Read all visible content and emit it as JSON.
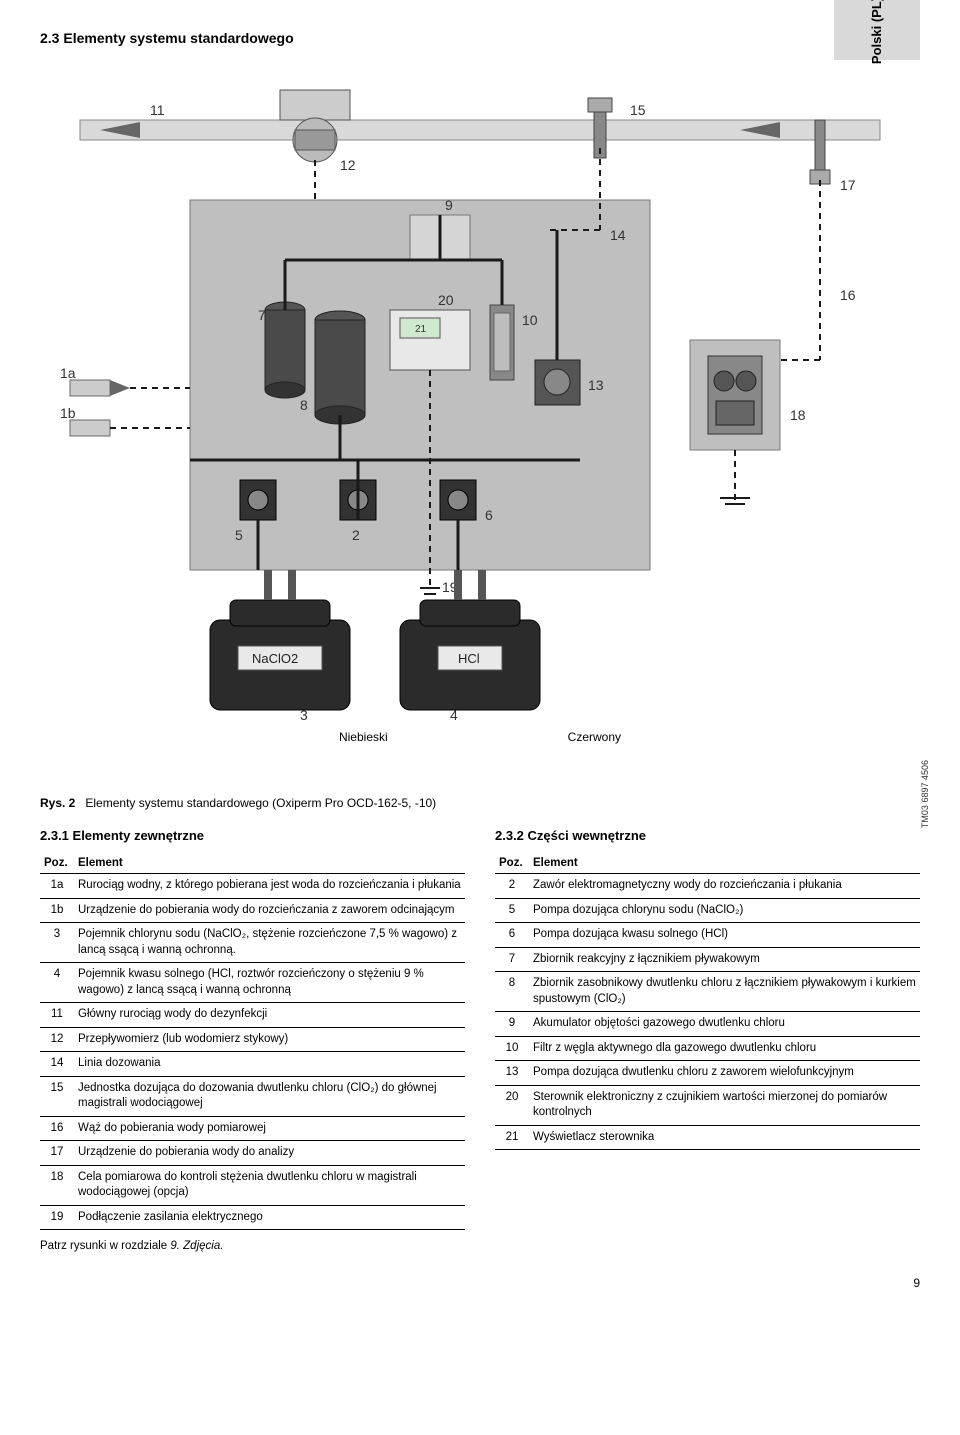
{
  "lang_tab": "Polski (PL)",
  "section_title": "2.3 Elementy systemu standardowego",
  "diagram": {
    "labels": [
      "1a",
      "1b",
      "2",
      "3",
      "4",
      "5",
      "6",
      "7",
      "8",
      "9",
      "10",
      "11",
      "12",
      "13",
      "14",
      "15",
      "16",
      "17",
      "18",
      "19",
      "20",
      "21"
    ],
    "chem_left": "NaClO2",
    "chem_right": "HCl",
    "color_left_label": "Niebieski",
    "color_right_label": "Czerwony",
    "panel_fill": "#bfbfbf",
    "panel_stroke": "#7a7a7a",
    "tank_fill": "#2b2b2b",
    "line_color": "#1a1a1a",
    "dash": "6 5",
    "bg": "#ffffff"
  },
  "caption_prefix": "Rys. 2",
  "caption_text": "Elementy systemu standardowego (Oxiperm Pro OCD-162-5, -10)",
  "tm_code": "TM03 6897 4506",
  "left": {
    "title": "2.3.1 Elementy zewnętrzne",
    "header_pos": "Poz.",
    "header_el": "Element",
    "rows": [
      {
        "p": "1a",
        "t": "Rurociąg wodny, z którego pobierana jest woda do rozcieńczania i płukania"
      },
      {
        "p": "1b",
        "t": "Urządzenie do pobierania wody do rozcieńczania z zaworem odcinającym"
      },
      {
        "p": "3",
        "t": "Pojemnik chlorynu sodu (NaClO₂, stężenie rozcieńczone 7,5 % wagowo) z lancą ssącą i wanną ochronną."
      },
      {
        "p": "4",
        "t": "Pojemnik kwasu solnego (HCl, roztwór rozcieńczony o stężeniu 9 % wagowo) z lancą ssącą i wanną ochronną"
      },
      {
        "p": "11",
        "t": "Główny rurociąg wody do dezynfekcji"
      },
      {
        "p": "12",
        "t": "Przepływomierz (lub wodomierz stykowy)"
      },
      {
        "p": "14",
        "t": "Linia dozowania"
      },
      {
        "p": "15",
        "t": "Jednostka dozująca do dozowania dwutlenku chloru (ClO₂) do głównej magistrali wodociągowej"
      },
      {
        "p": "16",
        "t": "Wąż do pobierania wody pomiarowej"
      },
      {
        "p": "17",
        "t": "Urządzenie do pobierania wody do analizy"
      },
      {
        "p": "18",
        "t": "Cela pomiarowa do kontroli stężenia dwutlenku chloru w magistrali wodociągowej (opcja)"
      },
      {
        "p": "19",
        "t": "Podłączenie zasilania elektrycznego"
      }
    ],
    "footnote_prefix": "Patrz rysunki w rozdziale ",
    "footnote_italic": "9. Zdjęcia."
  },
  "right": {
    "title": "2.3.2 Części wewnętrzne",
    "header_pos": "Poz.",
    "header_el": "Element",
    "rows": [
      {
        "p": "2",
        "t": "Zawór elektromagnetyczny wody do rozcieńczania i płukania"
      },
      {
        "p": "5",
        "t": "Pompa dozująca chlorynu sodu (NaClO₂)"
      },
      {
        "p": "6",
        "t": "Pompa dozująca kwasu solnego (HCl)"
      },
      {
        "p": "7",
        "t": "Zbiornik reakcyjny z łącznikiem pływakowym"
      },
      {
        "p": "8",
        "t": "Zbiornik zasobnikowy dwutlenku chloru z łącznikiem pływakowym i kurkiem spustowym (ClO₂)"
      },
      {
        "p": "9",
        "t": "Akumulator objętości gazowego dwutlenku chloru"
      },
      {
        "p": "10",
        "t": "Filtr z węgla aktywnego dla gazowego dwutlenku chloru"
      },
      {
        "p": "13",
        "t": "Pompa dozująca dwutlenku chloru z zaworem wielofunkcyjnym"
      },
      {
        "p": "20",
        "t": "Sterownik elektroniczny z czujnikiem wartości mierzonej do pomiarów kontrolnych"
      },
      {
        "p": "21",
        "t": "Wyświetlacz sterownika"
      }
    ]
  },
  "page_number": "9"
}
